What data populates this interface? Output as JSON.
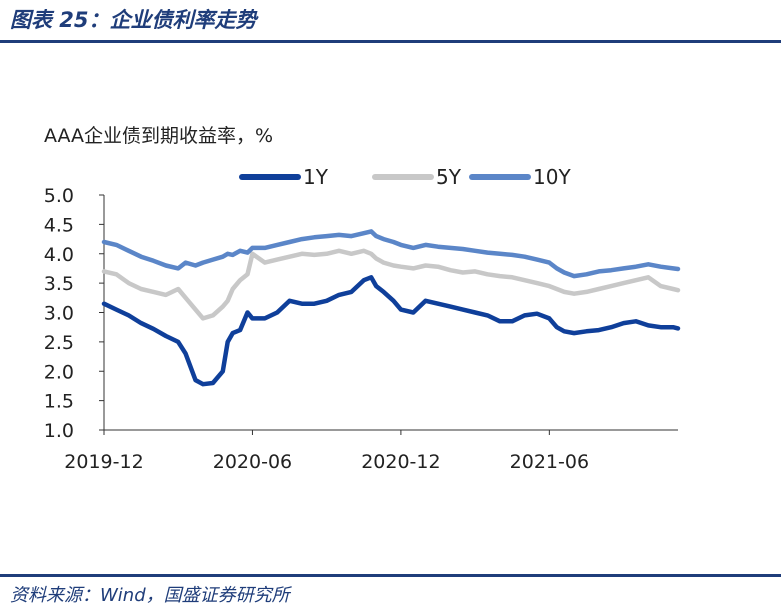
{
  "header": {
    "title": "图表 25：企业债利率走势"
  },
  "footer": {
    "source": "资料来源：Wind，国盛证券研究所"
  },
  "colors": {
    "brand": "#1f3d7a",
    "series_1y": "#0f3f9a",
    "series_5y": "#c8c8c8",
    "series_10y": "#5b86c8",
    "axis": "#333333"
  },
  "chart_data": {
    "type": "line",
    "title": "AAA企业债到期收益率，%",
    "xlabel": "",
    "ylabel": "",
    "ylim": [
      1.0,
      5.0
    ],
    "yticks": [
      "5.0",
      "4.5",
      "4.0",
      "3.5",
      "3.0",
      "2.5",
      "2.0",
      "1.5",
      "1.0"
    ],
    "xticks": [
      "2019-12",
      "2020-06",
      "2020-12",
      "2021-06"
    ],
    "xtick_values": [
      0,
      6,
      12,
      18
    ],
    "xlim": [
      0,
      23.2
    ],
    "grid": false,
    "legend": "top-right",
    "x": [
      0,
      0.5,
      1,
      1.5,
      2,
      2.5,
      3,
      3.3,
      3.7,
      4,
      4.4,
      4.8,
      5,
      5.2,
      5.5,
      5.8,
      6,
      6.5,
      7,
      7.5,
      8,
      8.5,
      9,
      9.5,
      10,
      10.5,
      10.8,
      11,
      11.3,
      11.7,
      12,
      12.5,
      13,
      13.5,
      14,
      14.5,
      15,
      15.5,
      16,
      16.5,
      17,
      17.5,
      18,
      18.3,
      18.6,
      19,
      19.5,
      20,
      20.5,
      21,
      21.5,
      22,
      22.5,
      23,
      23.2
    ],
    "series": [
      {
        "name": "1Y",
        "values": [
          3.15,
          3.05,
          2.95,
          2.82,
          2.72,
          2.6,
          2.5,
          2.3,
          1.85,
          1.78,
          1.8,
          2.0,
          2.5,
          2.65,
          2.7,
          3.0,
          2.9,
          2.9,
          3.0,
          3.2,
          3.15,
          3.15,
          3.2,
          3.3,
          3.35,
          3.55,
          3.6,
          3.45,
          3.35,
          3.2,
          3.05,
          3.0,
          3.2,
          3.15,
          3.1,
          3.05,
          3.0,
          2.95,
          2.85,
          2.85,
          2.95,
          2.98,
          2.9,
          2.75,
          2.68,
          2.65,
          2.68,
          2.7,
          2.75,
          2.82,
          2.85,
          2.78,
          2.75,
          2.75,
          2.73
        ]
      },
      {
        "name": "5Y",
        "values": [
          3.7,
          3.65,
          3.5,
          3.4,
          3.35,
          3.3,
          3.4,
          3.25,
          3.05,
          2.9,
          2.95,
          3.1,
          3.2,
          3.4,
          3.55,
          3.65,
          4.0,
          3.85,
          3.9,
          3.95,
          4.0,
          3.98,
          4.0,
          4.05,
          4.0,
          4.05,
          4.0,
          3.92,
          3.85,
          3.8,
          3.78,
          3.75,
          3.8,
          3.78,
          3.72,
          3.68,
          3.7,
          3.65,
          3.62,
          3.6,
          3.55,
          3.5,
          3.45,
          3.4,
          3.35,
          3.32,
          3.35,
          3.4,
          3.45,
          3.5,
          3.55,
          3.6,
          3.45,
          3.4,
          3.38
        ]
      },
      {
        "name": "10Y",
        "values": [
          4.2,
          4.15,
          4.05,
          3.95,
          3.88,
          3.8,
          3.75,
          3.85,
          3.8,
          3.85,
          3.9,
          3.95,
          4.0,
          3.98,
          4.05,
          4.02,
          4.1,
          4.1,
          4.15,
          4.2,
          4.25,
          4.28,
          4.3,
          4.32,
          4.3,
          4.35,
          4.38,
          4.3,
          4.25,
          4.2,
          4.15,
          4.1,
          4.15,
          4.12,
          4.1,
          4.08,
          4.05,
          4.02,
          4.0,
          3.98,
          3.95,
          3.9,
          3.85,
          3.75,
          3.68,
          3.62,
          3.65,
          3.7,
          3.72,
          3.75,
          3.78,
          3.82,
          3.78,
          3.75,
          3.74
        ]
      }
    ]
  }
}
